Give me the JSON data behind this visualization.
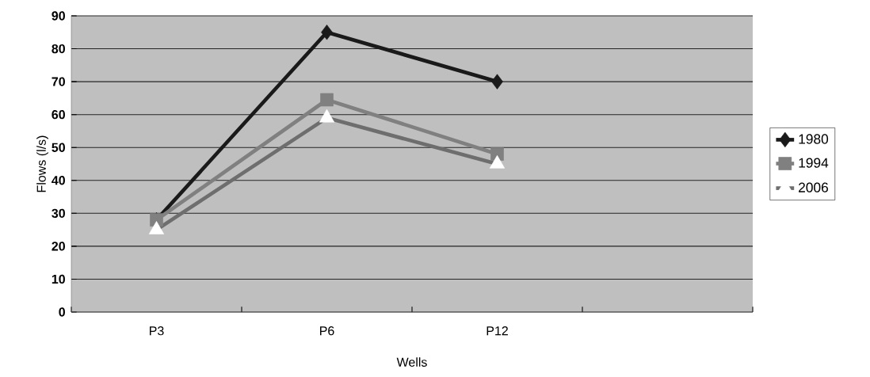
{
  "chart_data": {
    "type": "line",
    "xlabel": "Wells",
    "ylabel": "Flows (l/s)",
    "categories": [
      "P3",
      "P6",
      "P12",
      null
    ],
    "series": [
      {
        "name": "1980",
        "color": "#1a1a1a",
        "marker": "diamond",
        "values": [
          28,
          85,
          70,
          null
        ]
      },
      {
        "name": "1994",
        "color": "#808080",
        "marker": "square",
        "values": [
          28,
          64.5,
          48,
          null
        ]
      },
      {
        "name": "2006",
        "color": "#6e6e6e",
        "marker": "triangle",
        "values": [
          25,
          59,
          45,
          null
        ]
      }
    ],
    "ylim": [
      0,
      90
    ],
    "yticks": [
      0,
      10,
      20,
      30,
      40,
      50,
      60,
      70,
      80,
      90
    ],
    "grid": "y",
    "legend": "right",
    "line_style": "solid"
  }
}
